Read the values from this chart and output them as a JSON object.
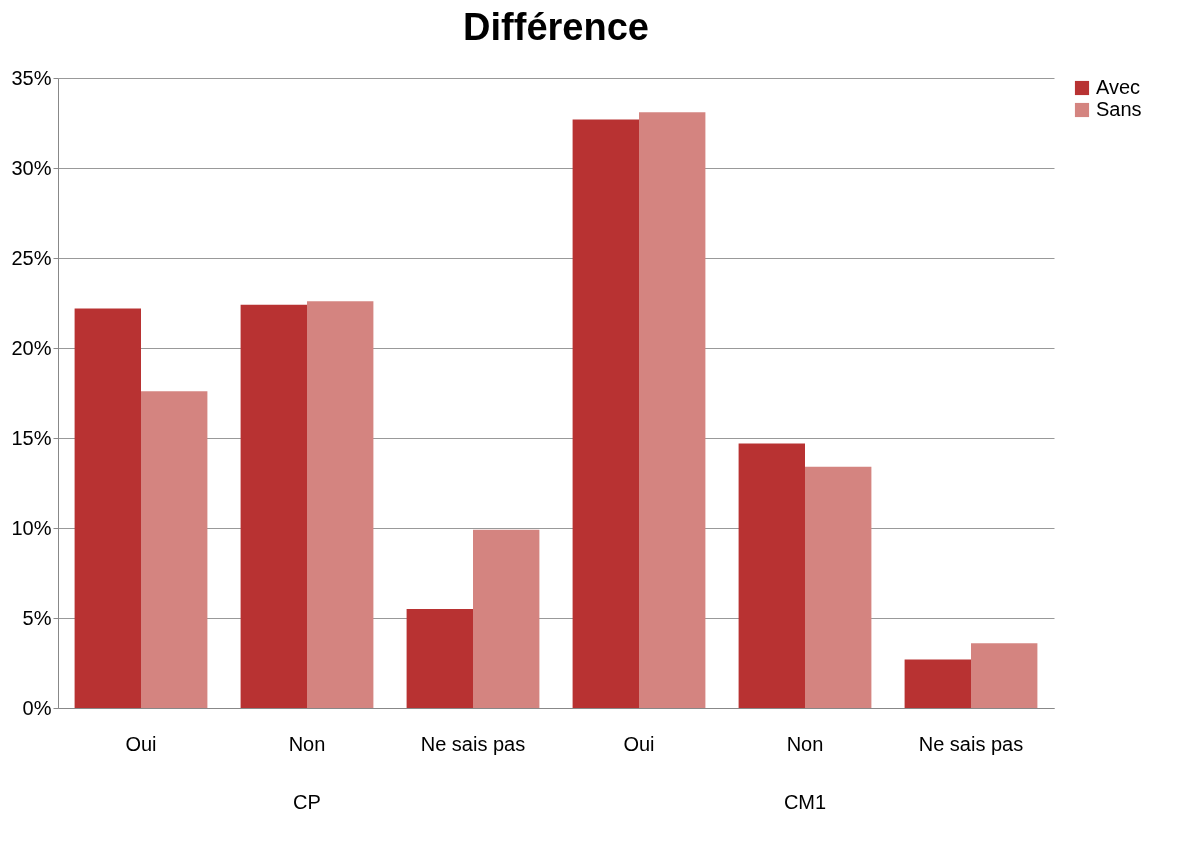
{
  "chart_data": {
    "type": "bar",
    "title": "Différence",
    "categories": [
      "Oui",
      "Non",
      "Ne sais pas",
      "Oui",
      "Non",
      "Ne sais pas"
    ],
    "series": [
      {
        "name": "Avec",
        "color": "#b83232",
        "values": [
          22.2,
          22.4,
          5.5,
          32.7,
          14.7,
          2.7
        ]
      },
      {
        "name": "Sans",
        "color": "#d48480",
        "values": [
          17.6,
          22.6,
          9.9,
          33.1,
          13.4,
          3.6
        ]
      }
    ],
    "annotations": [
      "CP",
      "CM1"
    ],
    "ylim": [
      0,
      35
    ],
    "yticks": [
      {
        "value": 0,
        "label": "0%"
      },
      {
        "value": 5,
        "label": "5%"
      },
      {
        "value": 10,
        "label": "10%"
      },
      {
        "value": 15,
        "label": "15%"
      },
      {
        "value": 20,
        "label": "20%"
      },
      {
        "value": 25,
        "label": "25%"
      },
      {
        "value": 30,
        "label": "30%"
      },
      {
        "value": 35,
        "label": "35%"
      }
    ],
    "grid": "y",
    "legend": "right"
  }
}
